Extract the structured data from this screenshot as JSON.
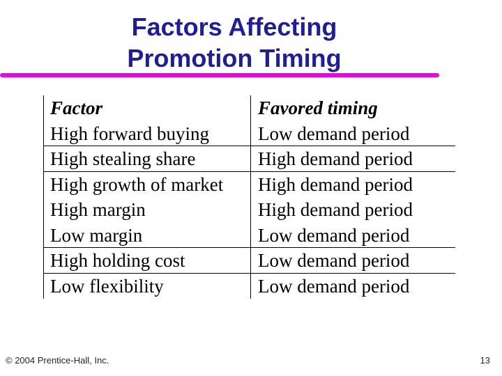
{
  "title": {
    "line1": "Factors Affecting",
    "line2": "Promotion Timing"
  },
  "colors": {
    "title_blue": "#1E1E9C",
    "underline_magenta": "#EE00EE",
    "table_line": "#000000"
  },
  "table": {
    "columns": [
      "Factor",
      "Favored timing"
    ],
    "rows": [
      {
        "factor": "High forward buying",
        "timing": "Low demand period",
        "divider": true
      },
      {
        "factor": "High stealing share",
        "timing": "High demand period",
        "divider": true
      },
      {
        "factor": "High growth of market",
        "timing": "High demand period",
        "divider": false
      },
      {
        "factor": "High margin",
        "timing": "High demand period",
        "divider": false
      },
      {
        "factor": "Low margin",
        "timing": "Low demand period",
        "divider": true
      },
      {
        "factor": "High holding cost",
        "timing": "Low demand period",
        "divider": true
      },
      {
        "factor": "Low flexibility",
        "timing": "Low demand period",
        "divider": false
      }
    ]
  },
  "footer": {
    "copyright": "© 2004 Prentice-Hall, Inc.",
    "page_number": "13"
  }
}
